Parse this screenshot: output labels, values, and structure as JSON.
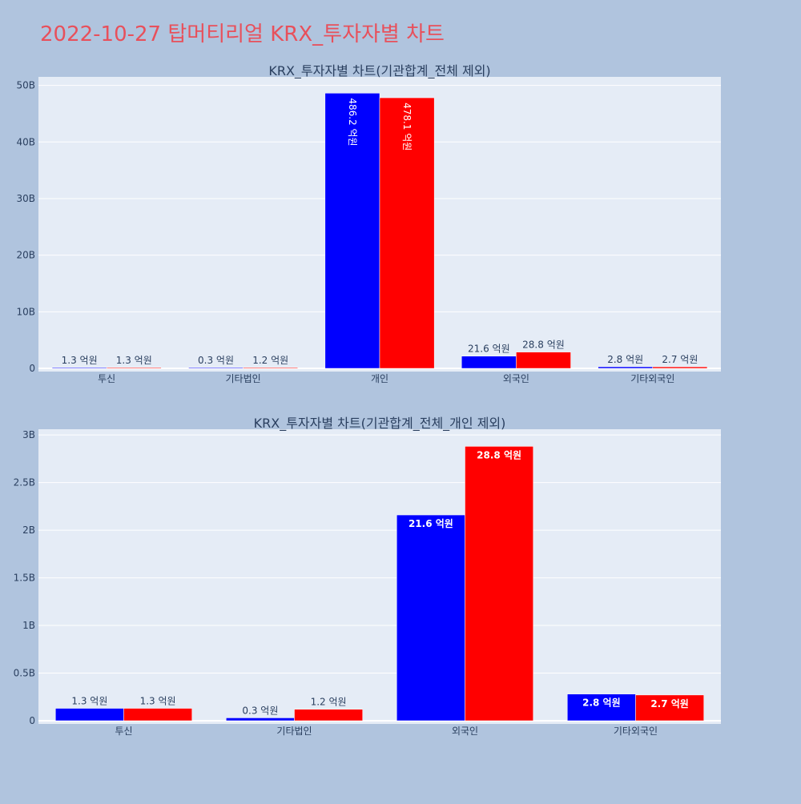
{
  "page": {
    "title": "2022-10-27 탑머티리얼 KRX_투자자별 차트"
  },
  "colors": {
    "background": "#b0c4de",
    "plot_background": "#e5ecf6",
    "buy": "#0000ff",
    "sell": "#ff0000",
    "title": "#e8505b",
    "text": "#2a3f5f",
    "grid": "#ffffff"
  },
  "chart_data": [
    {
      "type": "bar",
      "title": "KRX_투자자별 차트(기관합계_전체 제외)",
      "xlabel": "",
      "ylabel": "",
      "categories": [
        "투신",
        "기타법인",
        "개인",
        "외국인",
        "기타외국인"
      ],
      "ylim": [
        0,
        51500000000
      ],
      "yticks": [
        0,
        10000000000,
        20000000000,
        30000000000,
        40000000000,
        50000000000
      ],
      "ytick_labels": [
        "0",
        "10B",
        "20B",
        "30B",
        "40B",
        "50B"
      ],
      "grid": true,
      "series": [
        {
          "color": "#0000ff",
          "values": [
            130000000,
            30000000,
            48620000000,
            2160000000,
            280000000
          ],
          "labels": [
            "1.3 억원",
            "0.3 억원",
            "486.2 억원",
            "21.6 억원",
            "2.8 억원"
          ],
          "label_positions": [
            "outside",
            "outside",
            "inside-vertical",
            "outside",
            "outside"
          ]
        },
        {
          "color": "#ff0000",
          "values": [
            130000000,
            120000000,
            47810000000,
            2880000000,
            270000000
          ],
          "labels": [
            "1.3 억원",
            "1.2 억원",
            "478.1 억원",
            "28.8 억원",
            "2.7 억원"
          ],
          "label_positions": [
            "outside",
            "outside",
            "inside-vertical",
            "outside",
            "outside"
          ]
        }
      ]
    },
    {
      "type": "bar",
      "title": "KRX_투자자별 차트(기관합계_전체_개인 제외)",
      "xlabel": "",
      "ylabel": "",
      "categories": [
        "투신",
        "기타법인",
        "외국인",
        "기타외국인"
      ],
      "ylim": [
        0,
        3060000000
      ],
      "yticks": [
        0,
        500000000,
        1000000000,
        1500000000,
        2000000000,
        2500000000,
        3000000000
      ],
      "ytick_labels": [
        "0",
        "0.5B",
        "1B",
        "1.5B",
        "2B",
        "2.5B",
        "3B"
      ],
      "grid": true,
      "series": [
        {
          "color": "#0000ff",
          "values": [
            130000000,
            30000000,
            2160000000,
            280000000
          ],
          "labels": [
            "1.3 억원",
            "0.3 억원",
            "21.6 억원",
            "2.8 억원"
          ],
          "label_positions": [
            "outside",
            "outside",
            "inside",
            "inside"
          ]
        },
        {
          "color": "#ff0000",
          "values": [
            130000000,
            120000000,
            2880000000,
            270000000
          ],
          "labels": [
            "1.3 억원",
            "1.2 억원",
            "28.8 억원",
            "2.7 억원"
          ],
          "label_positions": [
            "outside",
            "outside",
            "inside",
            "inside"
          ]
        }
      ]
    }
  ]
}
